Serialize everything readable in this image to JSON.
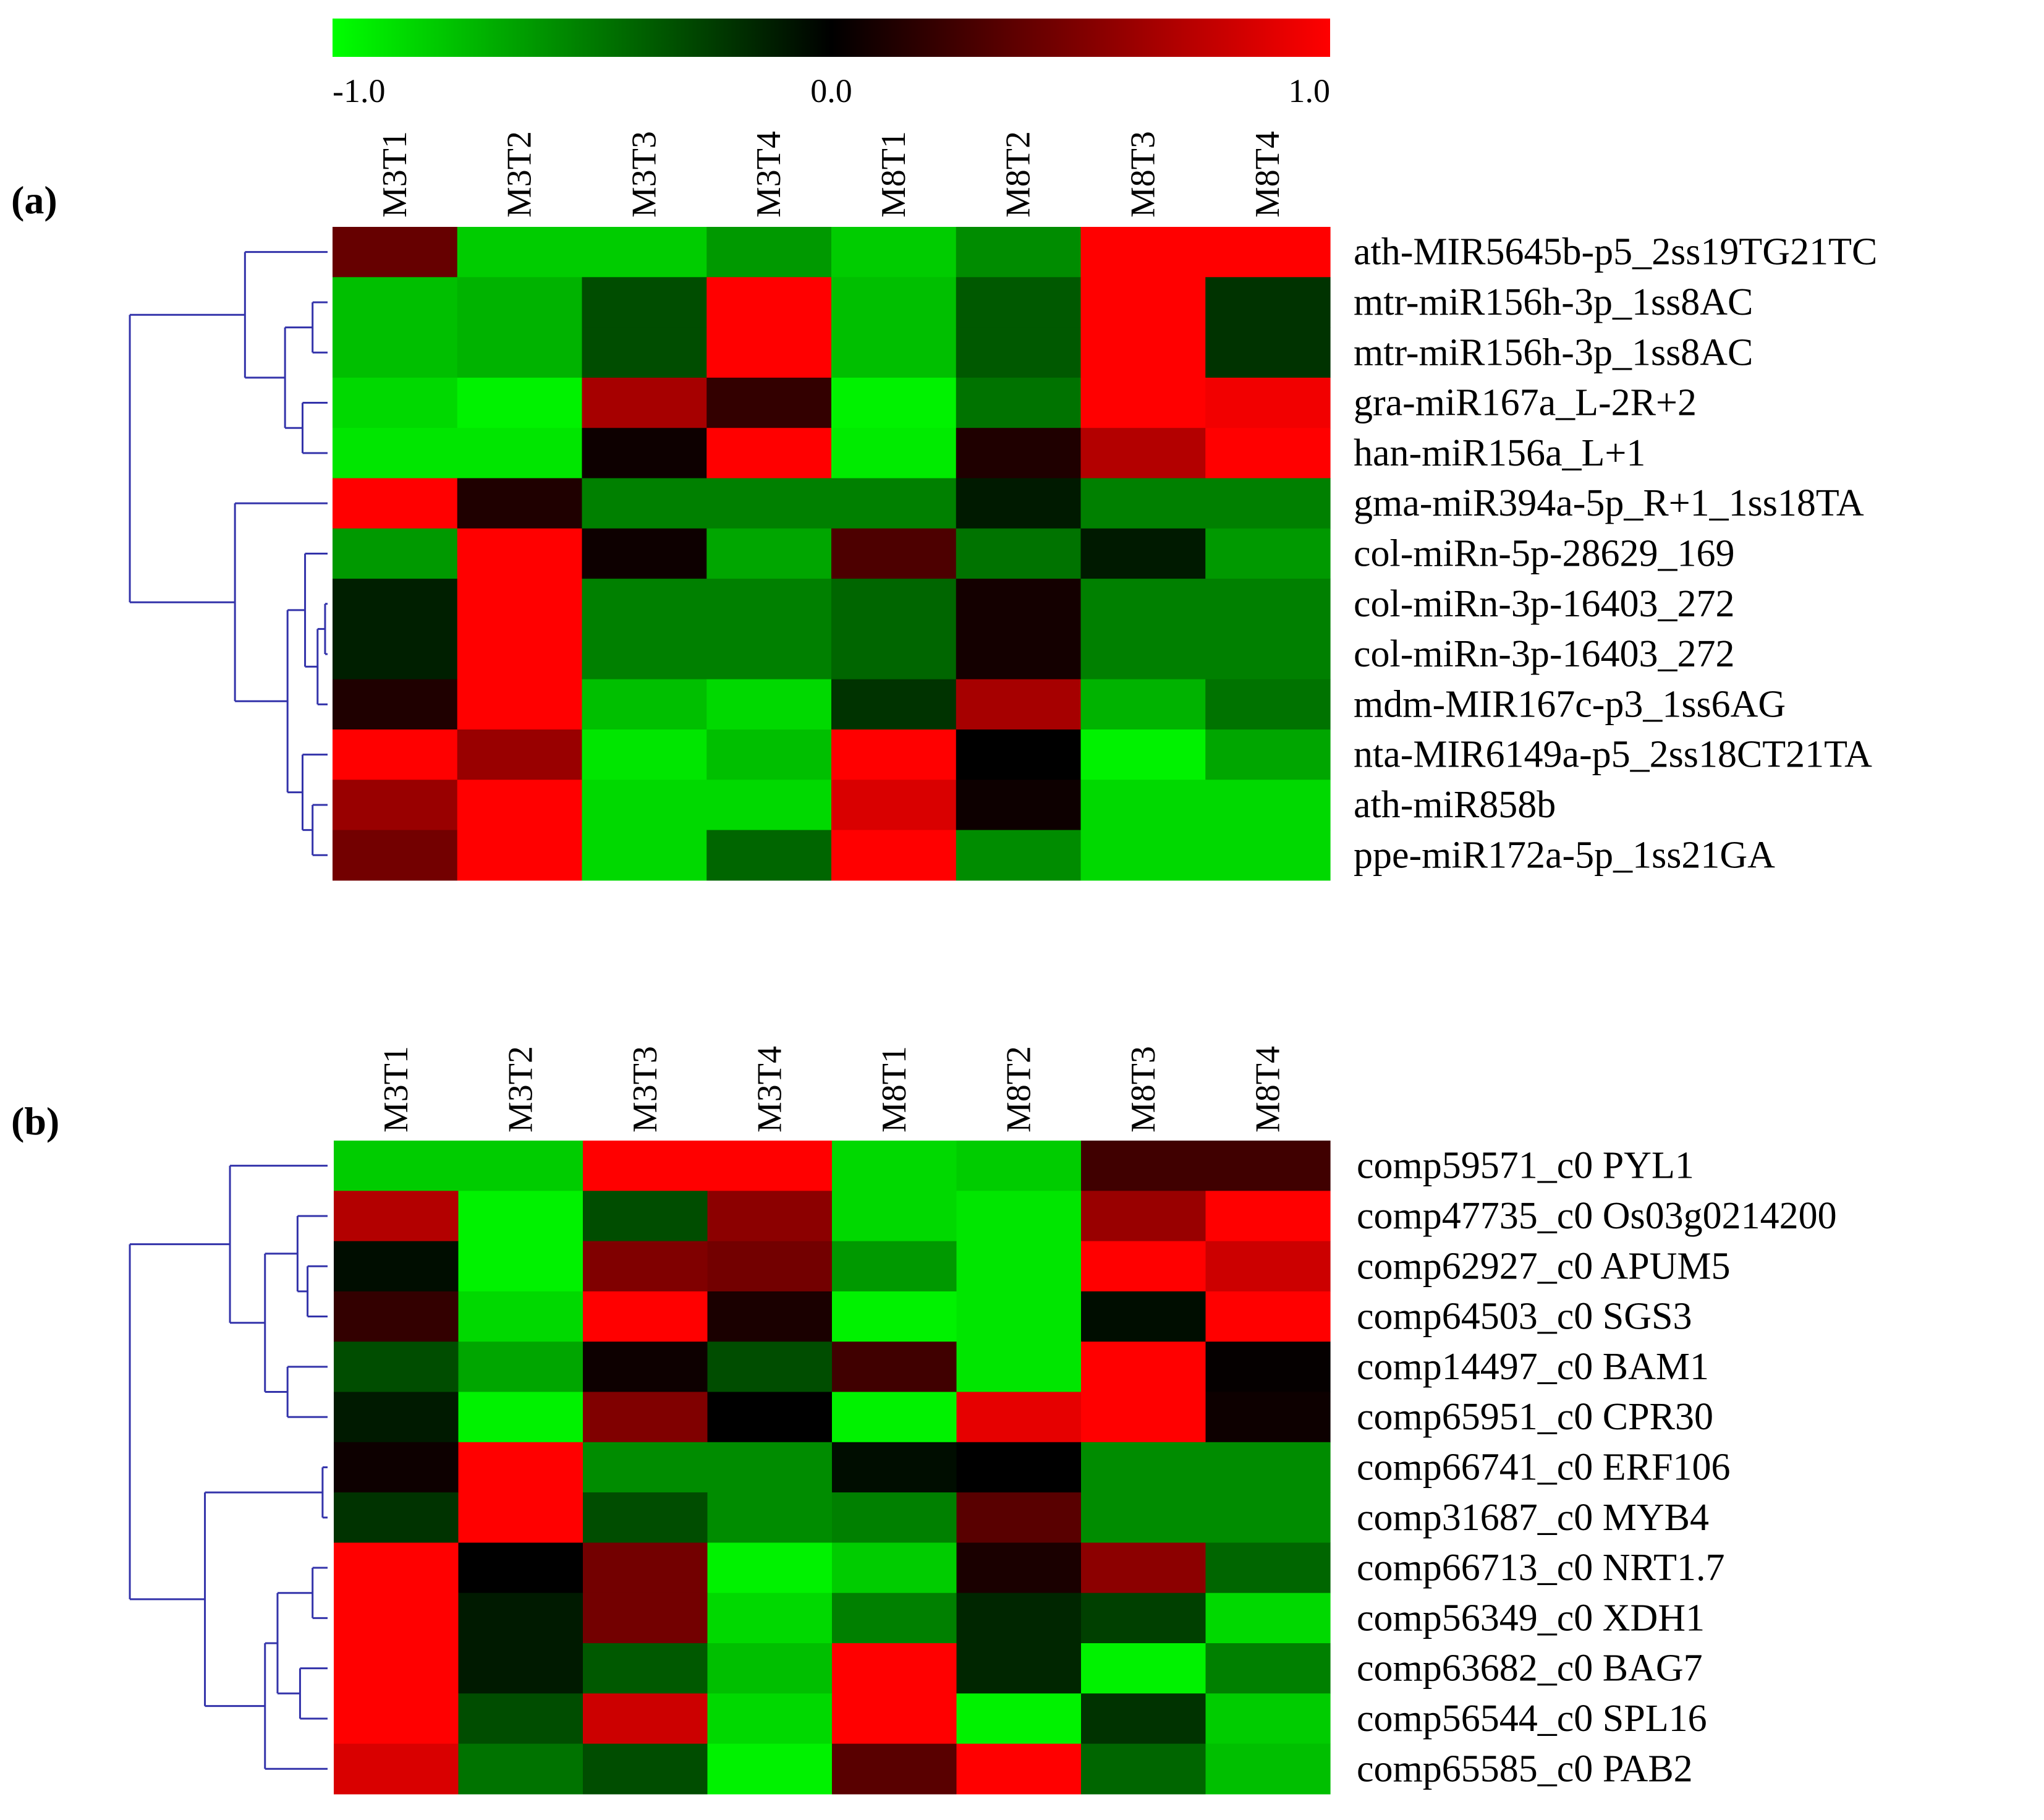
{
  "colorbar": {
    "tick_labels": [
      "-1.0",
      "0.0",
      "1.0"
    ],
    "min": -1.0,
    "mid": 0.0,
    "max": 1.0,
    "low_color": "#00ff00",
    "mid_color": "#000000",
    "high_color": "#ff0000"
  },
  "dendrogram_color": "#3333aa",
  "chart_data": [
    {
      "type": "heatmap",
      "panel_label": "(a)",
      "columns": [
        "M3T1",
        "M3T2",
        "M3T3",
        "M3T4",
        "M8T1",
        "M8T2",
        "M8T3",
        "M8T4"
      ],
      "rows": [
        "ath-MIR5645b-p5_2ss19TG21TC",
        "mtr-miR156h-3p_1ss8AC",
        "mtr-miR156h-3p_1ss8AC",
        "gra-miR167a_L-2R+2",
        "han-miR156a_L+1",
        "gma-miR394a-5p_R+1_1ss18TA",
        "col-miRn-5p-28629_169",
        "col-miRn-3p-16403_272",
        "col-miRn-3p-16403_272",
        "mdm-MIR167c-p3_1ss6AG",
        "nta-MIR6149a-p5_2ss18CT21TA",
        "ath-miR858b",
        "ppe-miR172a-5p_1ss21GA"
      ],
      "values": [
        [
          0.4,
          -0.8,
          -0.8,
          -0.6,
          -0.8,
          -0.55,
          1.0,
          1.0
        ],
        [
          -0.75,
          -0.7,
          -0.3,
          1.0,
          -0.75,
          -0.35,
          1.0,
          -0.2
        ],
        [
          -0.75,
          -0.7,
          -0.3,
          1.0,
          -0.75,
          -0.35,
          1.0,
          -0.2
        ],
        [
          -0.85,
          -0.95,
          0.65,
          0.2,
          -0.95,
          -0.45,
          1.0,
          0.95
        ],
        [
          -0.9,
          -0.9,
          0.05,
          1.0,
          -0.92,
          0.12,
          0.7,
          1.0
        ],
        [
          1.0,
          0.12,
          -0.5,
          -0.5,
          -0.5,
          -0.1,
          -0.5,
          -0.5
        ],
        [
          -0.6,
          1.0,
          0.05,
          -0.65,
          0.3,
          -0.45,
          -0.1,
          -0.6
        ],
        [
          -0.12,
          1.0,
          -0.5,
          -0.5,
          -0.4,
          0.08,
          -0.5,
          -0.5
        ],
        [
          -0.12,
          1.0,
          -0.5,
          -0.5,
          -0.4,
          0.08,
          -0.5,
          -0.5
        ],
        [
          0.12,
          1.0,
          -0.75,
          -0.85,
          -0.2,
          0.65,
          -0.7,
          -0.45
        ],
        [
          1.0,
          0.6,
          -0.9,
          -0.75,
          1.0,
          0.0,
          -0.95,
          -0.65
        ],
        [
          0.6,
          1.0,
          -0.85,
          -0.85,
          0.85,
          0.05,
          -0.85,
          -0.85
        ],
        [
          0.45,
          1.0,
          -0.85,
          -0.4,
          1.0,
          -0.55,
          -0.85,
          -0.85
        ]
      ]
    },
    {
      "type": "heatmap",
      "panel_label": "(b)",
      "columns": [
        "M3T1",
        "M3T2",
        "M3T3",
        "M3T4",
        "M8T1",
        "M8T2",
        "M8T3",
        "M8T4"
      ],
      "rows": [
        "comp59571_c0 PYL1",
        "comp47735_c0 Os03g0214200",
        "comp62927_c0 APUM5",
        "comp64503_c0 SGS3",
        "comp14497_c0 BAM1",
        "comp65951_c0 CPR30",
        "comp66741_c0 ERF106",
        "comp31687_c0 MYB4",
        "comp66713_c0 NRT1.7",
        "comp56349_c0 XDH1",
        "comp63682_c0 BAG7",
        "comp56544_c0 SPL16",
        "comp65585_c0 PAB2"
      ],
      "values": [
        [
          -0.8,
          -0.8,
          1.0,
          1.0,
          -0.85,
          -0.8,
          0.25,
          0.25
        ],
        [
          0.7,
          -0.95,
          -0.3,
          0.55,
          -0.85,
          -0.9,
          0.6,
          1.0
        ],
        [
          -0.05,
          -0.95,
          0.5,
          0.45,
          -0.6,
          -0.9,
          1.0,
          0.8
        ],
        [
          0.2,
          -0.85,
          1.0,
          0.1,
          -0.95,
          -0.9,
          -0.05,
          1.0
        ],
        [
          -0.3,
          -0.65,
          0.05,
          -0.3,
          0.25,
          -0.9,
          1.0,
          0.02
        ],
        [
          -0.1,
          -0.95,
          0.5,
          0.0,
          -0.95,
          0.9,
          1.0,
          0.05
        ],
        [
          0.05,
          1.0,
          -0.55,
          -0.55,
          -0.05,
          0.0,
          -0.55,
          -0.55
        ],
        [
          -0.2,
          1.0,
          -0.3,
          -0.55,
          -0.5,
          0.35,
          -0.55,
          -0.55
        ],
        [
          1.0,
          0.0,
          0.45,
          -0.95,
          -0.8,
          0.1,
          0.55,
          -0.4
        ],
        [
          1.0,
          -0.1,
          0.45,
          -0.85,
          -0.5,
          -0.15,
          -0.25,
          -0.85
        ],
        [
          1.0,
          -0.1,
          -0.35,
          -0.75,
          1.0,
          -0.15,
          -0.95,
          -0.5
        ],
        [
          1.0,
          -0.3,
          0.8,
          -0.85,
          1.0,
          -0.95,
          -0.2,
          -0.8
        ],
        [
          0.85,
          -0.45,
          -0.3,
          -0.95,
          0.35,
          1.0,
          -0.4,
          -0.75
        ]
      ]
    }
  ]
}
